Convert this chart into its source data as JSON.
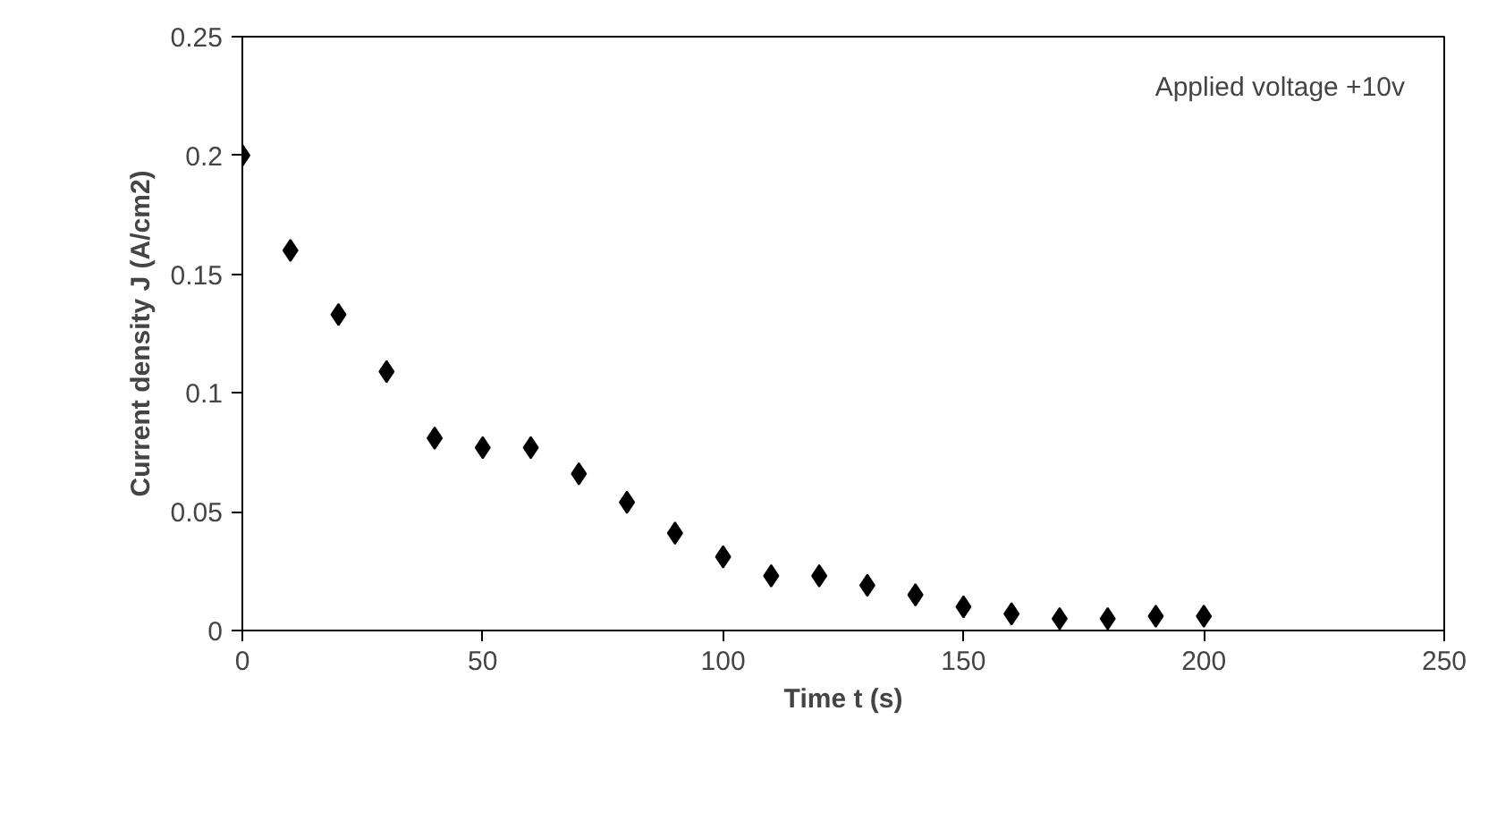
{
  "chart_data": {
    "type": "scatter",
    "xlabel": "Time t (s)",
    "ylabel": "Current density J (A/cm2)",
    "annotations": [
      "Applied voltage +10v"
    ],
    "x": [
      0,
      10,
      20,
      30,
      40,
      50,
      60,
      70,
      80,
      90,
      100,
      110,
      120,
      130,
      140,
      150,
      160,
      170,
      180,
      190,
      200
    ],
    "series": [
      {
        "color": "#000000",
        "values": [
          0.2,
          0.16,
          0.133,
          0.109,
          0.081,
          0.077,
          0.077,
          0.066,
          0.054,
          0.041,
          0.031,
          0.023,
          0.023,
          0.019,
          0.015,
          0.01,
          0.007,
          0.005,
          0.005,
          0.006,
          0.006
        ]
      }
    ],
    "xlim": [
      0,
      250
    ],
    "ylim": [
      0,
      0.25
    ],
    "xticks": [
      0,
      50,
      100,
      150,
      200,
      250
    ],
    "yticks": [
      0,
      0.05,
      0.1,
      0.15,
      0.2,
      0.25
    ],
    "marker": "diamond",
    "grid": false
  }
}
